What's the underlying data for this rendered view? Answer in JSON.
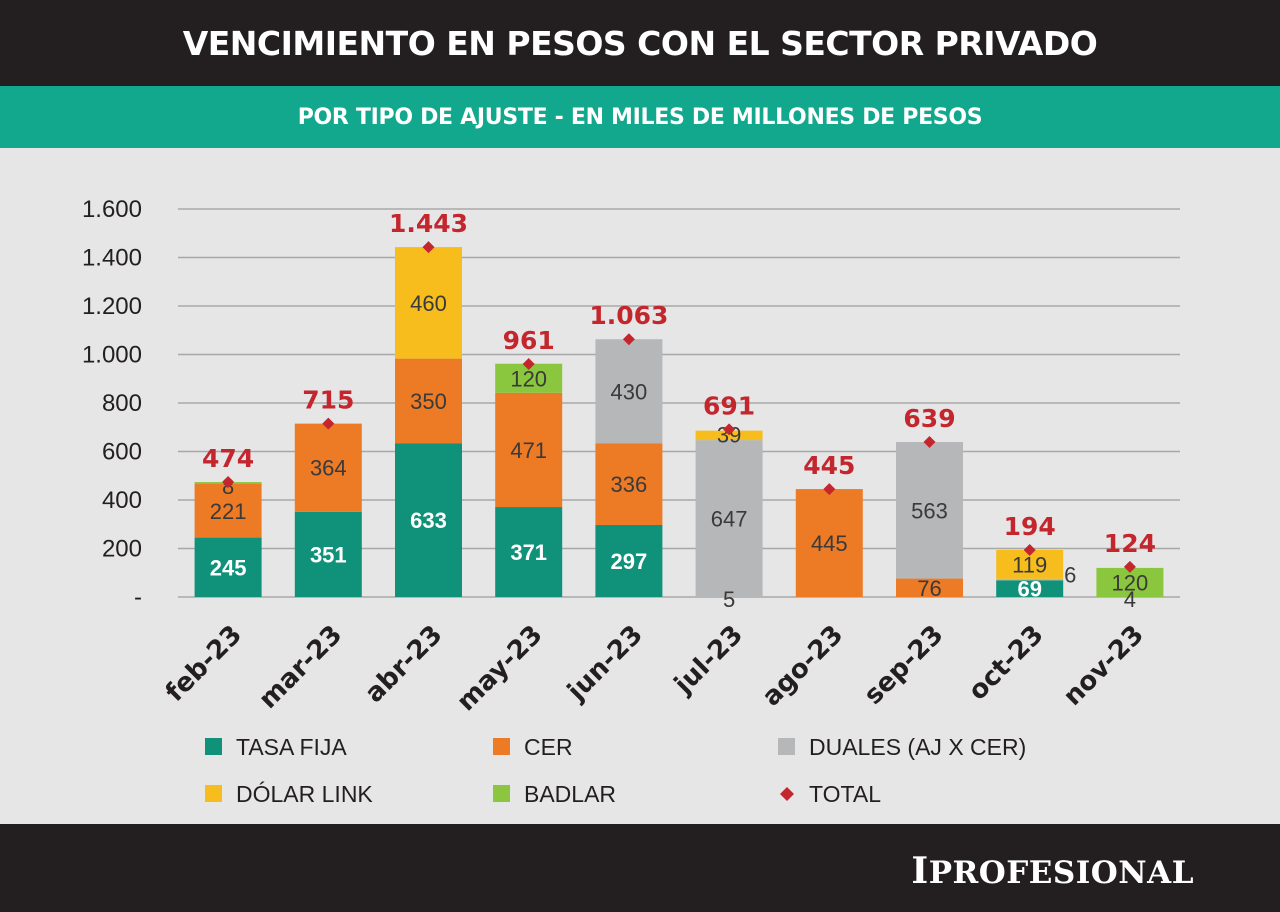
{
  "header": {
    "title": "VENCIMIENTO EN PESOS CON EL SECTOR PRIVADO"
  },
  "subheader": {
    "title": "POR TIPO DE AJUSTE - EN MILES DE MILLONES DE PESOS"
  },
  "footer": {
    "logo_first": "I",
    "logo_rest": "PROFESIONAL"
  },
  "chart_data": {
    "type": "bar",
    "stacked": true,
    "categories": [
      "feb-23",
      "mar-23",
      "abr-23",
      "may-23",
      "jun-23",
      "jul-23",
      "ago-23",
      "sep-23",
      "oct-23",
      "nov-23"
    ],
    "ylim": [
      0,
      1600
    ],
    "yticks": [
      {
        "value": 0,
        "label": "-"
      },
      {
        "value": 200,
        "label": "200"
      },
      {
        "value": 400,
        "label": "400"
      },
      {
        "value": 600,
        "label": "600"
      },
      {
        "value": 800,
        "label": "800"
      },
      {
        "value": 1000,
        "label": "1.000"
      },
      {
        "value": 1200,
        "label": "1.200"
      },
      {
        "value": 1400,
        "label": "1.400"
      },
      {
        "value": 1600,
        "label": "1.600"
      }
    ],
    "grid": true,
    "legend_position": "bottom",
    "series": [
      {
        "name": "TASA FIJA",
        "color": "#10917a",
        "values": [
          245,
          351,
          633,
          371,
          297,
          0,
          0,
          0,
          69,
          0
        ],
        "labels": [
          "245",
          "351",
          "633",
          "371",
          "297",
          null,
          null,
          null,
          "69",
          null
        ]
      },
      {
        "name": "CER",
        "color": "#ed7a25",
        "values": [
          221,
          364,
          350,
          471,
          336,
          0,
          445,
          76,
          0,
          0
        ],
        "labels": [
          "221",
          "364",
          "350",
          "471",
          "336",
          null,
          "445",
          "76",
          null,
          null
        ]
      },
      {
        "name": "DUALES (AJ X CER)",
        "color": "#b6b7b9",
        "values": [
          0,
          0,
          0,
          0,
          430,
          647,
          0,
          563,
          6,
          0
        ],
        "labels": [
          null,
          null,
          null,
          null,
          "430",
          "647",
          null,
          "563",
          "6",
          null
        ]
      },
      {
        "name": "DÓLAR LINK",
        "color": "#f6bd1c",
        "values": [
          0,
          0,
          460,
          0,
          0,
          39,
          0,
          0,
          119,
          0
        ],
        "labels": [
          null,
          null,
          "460",
          null,
          null,
          "39",
          null,
          null,
          "119",
          null
        ]
      },
      {
        "name": "BADLAR",
        "color": "#8bc63f",
        "values": [
          8,
          0,
          0,
          120,
          0,
          0,
          0,
          0,
          0,
          120
        ],
        "labels": [
          "8",
          null,
          null,
          "120",
          null,
          null,
          null,
          null,
          null,
          "120"
        ]
      }
    ],
    "extra_labels": [
      {
        "category": "jul-23",
        "text": "5"
      },
      {
        "category": "nov-23",
        "text": "4"
      }
    ],
    "total": {
      "name": "TOTAL",
      "color": "#c4262e",
      "values": [
        474,
        715,
        1443,
        961,
        1063,
        691,
        445,
        639,
        194,
        124
      ],
      "labels": [
        "474",
        "715",
        "1.443",
        "961",
        "1.063",
        "691",
        "445",
        "639",
        "194",
        "124"
      ]
    }
  }
}
